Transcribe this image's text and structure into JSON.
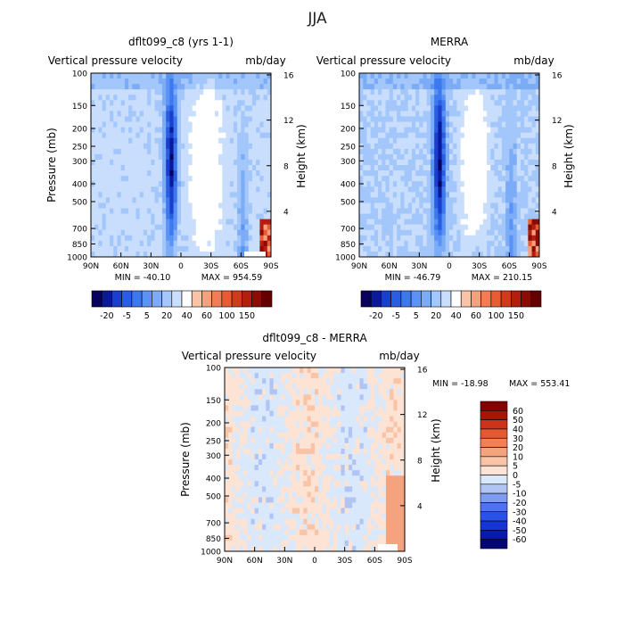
{
  "figure": {
    "title": "JJA"
  },
  "colors": {
    "blue_scale": [
      "#08005c",
      "#0a1a9a",
      "#1a3fcc",
      "#2a5ee0",
      "#3d78ef",
      "#5a93f5",
      "#7dacf7",
      "#a3c7fa",
      "#c9defc"
    ],
    "red_scale": [
      "#fde3d3",
      "#f9c3a8",
      "#f6a07e",
      "#f27c56",
      "#e85c34",
      "#d23a1c",
      "#b21f0e",
      "#8a0c04",
      "#650000"
    ],
    "diff_scale": [
      "#050673",
      "#0a17b0",
      "#1534d6",
      "#2a52e8",
      "#4d73ef",
      "#7f9cf2",
      "#b1c5f5",
      "#d9e8fa",
      "#fde3d3",
      "#f9c3a8",
      "#f5a27e",
      "#f17f57",
      "#e45832",
      "#cb3419",
      "#a61508",
      "#850000"
    ],
    "background": "#ffffff"
  },
  "chart_data": [
    {
      "type": "heatmap",
      "title": "dflt099_c8 (yrs 1-1)",
      "subtitle": "Vertical pressure velocity",
      "units": "mb/day",
      "xlabel": "",
      "ylabel": "Pressure (mb)",
      "y2label": "Height (km)",
      "x_ticks": [
        "90N",
        "60N",
        "30N",
        "0",
        "30S",
        "60S",
        "90S"
      ],
      "x_values": [
        90,
        60,
        30,
        0,
        -30,
        -60,
        -90
      ],
      "y_ticks": [
        "100",
        "150",
        "200",
        "250",
        "300",
        "400",
        "500",
        "700",
        "850",
        "1000"
      ],
      "y_values": [
        100,
        150,
        200,
        250,
        300,
        400,
        500,
        700,
        850,
        1000
      ],
      "y_log_scale": true,
      "y2_ticks": [
        "16",
        "12",
        "8",
        "4"
      ],
      "min_label": "MIN = -40.10",
      "max_label": "MAX = 954.59",
      "colorbar_labels": [
        "-20",
        "-5",
        "5",
        "20",
        "40",
        "60",
        "100",
        "150"
      ],
      "colorbar_scale": "blue_red"
    },
    {
      "type": "heatmap",
      "title": "MERRA",
      "subtitle": "Vertical pressure velocity",
      "units": "mb/day",
      "xlabel": "",
      "ylabel": "",
      "y2label": "Height (km)",
      "x_ticks": [
        "90N",
        "60N",
        "30N",
        "0",
        "30S",
        "60S",
        "90S"
      ],
      "x_values": [
        90,
        60,
        30,
        0,
        -30,
        -60,
        -90
      ],
      "y_ticks": [
        "100",
        "150",
        "200",
        "250",
        "300",
        "400",
        "500",
        "700",
        "850",
        "1000"
      ],
      "y_values": [
        100,
        150,
        200,
        250,
        300,
        400,
        500,
        700,
        850,
        1000
      ],
      "y_log_scale": true,
      "y2_ticks": [
        "16",
        "12",
        "8",
        "4"
      ],
      "min_label": "MIN = -46.79",
      "max_label": "MAX = 210.15",
      "colorbar_labels": [
        "-20",
        "-5",
        "5",
        "20",
        "40",
        "60",
        "100",
        "150"
      ],
      "colorbar_scale": "blue_red"
    },
    {
      "type": "heatmap",
      "title": "dflt099_c8 - MERRA",
      "subtitle": "Vertical pressure velocity",
      "units": "mb/day",
      "xlabel": "",
      "ylabel": "Pressure (mb)",
      "y2label": "Height (km)",
      "x_ticks": [
        "90N",
        "60N",
        "30N",
        "0",
        "30S",
        "60S",
        "90S"
      ],
      "x_values": [
        90,
        60,
        30,
        0,
        -30,
        -60,
        -90
      ],
      "y_ticks": [
        "100",
        "150",
        "200",
        "250",
        "300",
        "400",
        "500",
        "700",
        "850",
        "1000"
      ],
      "y_values": [
        100,
        150,
        200,
        250,
        300,
        400,
        500,
        700,
        850,
        1000
      ],
      "y_log_scale": true,
      "y2_ticks": [
        "16",
        "12",
        "8",
        "4"
      ],
      "min_label": "MIN = -18.98",
      "max_label": "MAX = 553.41",
      "colorbar_labels": [
        "60",
        "50",
        "40",
        "30",
        "20",
        "10",
        "5",
        "0",
        "-5",
        "-10",
        "-20",
        "-30",
        "-40",
        "-50",
        "-60"
      ],
      "colorbar_scale": "diff"
    }
  ]
}
